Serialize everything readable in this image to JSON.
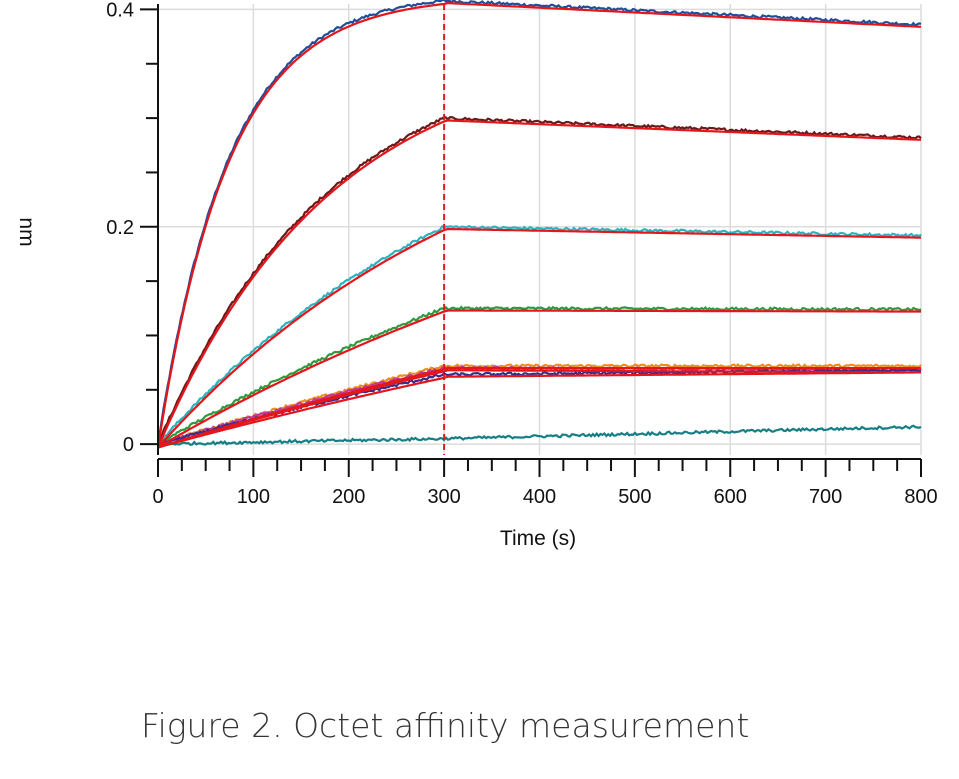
{
  "caption": "Figure 2. Octet affinity measurement",
  "chart_data": {
    "type": "line",
    "xlabel": "Time (s)",
    "ylabel": "nm",
    "xlim": [
      0,
      800
    ],
    "ylim": [
      -0.01,
      0.405
    ],
    "x_ticks": [
      0,
      100,
      200,
      300,
      400,
      500,
      600,
      700,
      800
    ],
    "x_tick_labels": [
      "0",
      "100",
      "200",
      "300",
      "400",
      "500",
      "600",
      "700",
      "800"
    ],
    "y_ticks": [
      0,
      0.2,
      0.4
    ],
    "y_tick_labels": [
      "0",
      "0.2",
      "0.4"
    ],
    "grid": true,
    "reference_lines": [
      {
        "axis": "x",
        "value": 0,
        "style": "dashed",
        "color": "#e0191f"
      },
      {
        "axis": "x",
        "value": 300,
        "style": "dashed",
        "color": "#e0191f"
      }
    ],
    "fit_color": "#e4161c",
    "series": [
      {
        "color": "#1f4e9a",
        "association_end": 0.408,
        "association_k": 0.0135,
        "dissociation_end": 0.386
      },
      {
        "color": "#6b1a1a",
        "association_end": 0.3,
        "association_k": 0.0055,
        "dissociation_end": 0.282
      },
      {
        "color": "#2cb3bf",
        "association_end": 0.2,
        "association_k": 0.0028,
        "dissociation_end": 0.192
      },
      {
        "color": "#2e9a3e",
        "association_end": 0.125,
        "association_k": 0.0015,
        "dissociation_end": 0.124
      },
      {
        "color": "#f08c1e",
        "association_end": 0.072,
        "association_k": 0.0009,
        "dissociation_end": 0.072
      },
      {
        "color": "#c0379a",
        "association_end": 0.07,
        "association_k": 0.0008,
        "dissociation_end": 0.068
      },
      {
        "color": "#3a2d8c",
        "association_end": 0.064,
        "association_k": 0.0008,
        "dissociation_end": 0.068
      },
      {
        "color": "#167f86",
        "association_end": 0.005,
        "association_k": 0.0005,
        "dissociation_end": 0.016,
        "no_fit": true
      }
    ]
  }
}
